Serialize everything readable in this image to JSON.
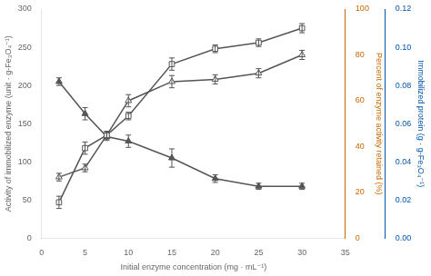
{
  "chart_data": {
    "type": "line",
    "x": [
      2,
      5,
      7.5,
      10,
      15,
      20,
      25,
      30
    ],
    "xlabel": "Initial enzyme concentration (mg · mL⁻¹)",
    "xlim": [
      0,
      35
    ],
    "xticks": [
      0,
      5,
      10,
      15,
      20,
      25,
      30,
      35
    ],
    "ylabel": "Activity of immobilized enzyme (unit · g-Fe₃O₄⁻¹)",
    "ylim": [
      0,
      300
    ],
    "yticks": [
      0,
      50,
      100,
      150,
      200,
      250,
      300
    ],
    "y2label": "Percent of enzyme activity retained (%)",
    "y2lim": [
      0,
      100
    ],
    "y2ticks": [
      0,
      20,
      40,
      60,
      80,
      100
    ],
    "y2color": "#CC6600",
    "y3label": "Immobilized protein (g · g-Fe₃O₄⁻¹)",
    "y3lim": [
      0.0,
      0.12
    ],
    "y3ticks": [
      {
        "value": 0,
        "label": "0.00"
      },
      0.02,
      0.04,
      0.06,
      0.08,
      {
        "value": 0.1,
        "label": "0.10"
      },
      0.12
    ],
    "y3color": "#0055AA",
    "grid": false,
    "series": [
      {
        "color": "#555555",
        "marker": "open_square",
        "values": [
          47,
          118,
          135,
          160,
          228,
          248,
          256,
          275
        ],
        "errors": [
          8,
          8,
          5,
          5,
          8,
          5,
          5,
          6
        ]
      },
      {
        "color": "#555555",
        "marker": "open_triangle",
        "values": [
          80,
          92,
          135,
          180,
          205,
          208,
          216,
          240
        ],
        "errors": [
          5,
          5,
          5,
          8,
          8,
          6,
          6,
          6
        ]
      },
      {
        "color": "#555555",
        "marker": "triangle",
        "values": [
          205,
          163,
          133,
          127,
          105,
          78,
          68,
          68
        ],
        "errors": [
          5,
          8,
          5,
          8,
          12,
          5,
          4,
          4
        ]
      }
    ]
  }
}
